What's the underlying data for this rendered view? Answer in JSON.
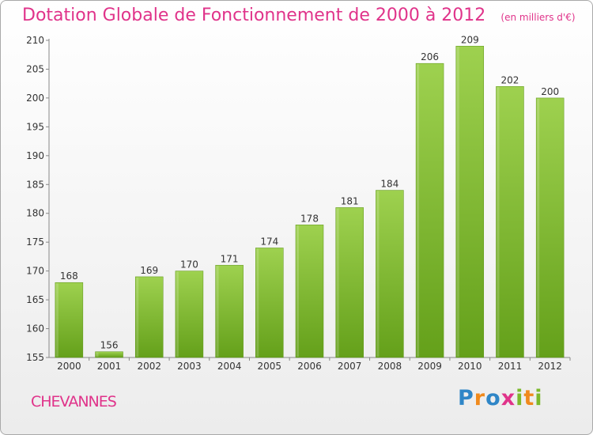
{
  "chart_data": {
    "type": "bar",
    "title": "Dotation Globale de Fonctionnement de 2000 à 2012",
    "subtitle": "(en milliers d'€)",
    "categories": [
      "2000",
      "2001",
      "2002",
      "2003",
      "2004",
      "2005",
      "2006",
      "2007",
      "2008",
      "2009",
      "2010",
      "2011",
      "2012"
    ],
    "values": [
      168,
      156,
      169,
      170,
      171,
      174,
      178,
      181,
      184,
      206,
      209,
      202,
      200
    ],
    "ylim": [
      155,
      210
    ],
    "yticks": [
      155,
      160,
      165,
      170,
      175,
      180,
      185,
      190,
      195,
      200,
      205,
      210
    ],
    "xlabel": "",
    "ylabel": "",
    "grid": false,
    "bar_color_top": "#9ed14f",
    "bar_color_bottom": "#64a01a"
  },
  "footer": {
    "commune": "CHEVANNES",
    "logo": "Proxiti"
  },
  "colors": {
    "title": "#e0338a",
    "axis": "#888888"
  }
}
